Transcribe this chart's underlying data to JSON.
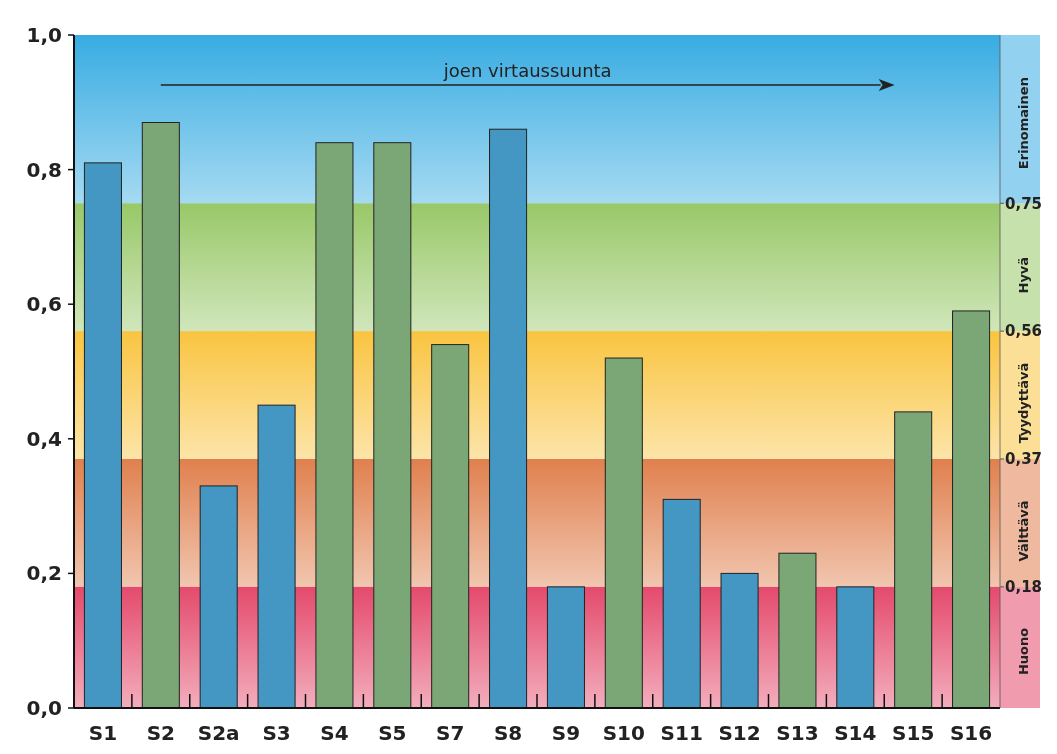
{
  "chart_data": {
    "type": "bar",
    "categories": [
      "S1",
      "S2",
      "S2a",
      "S3",
      "S4",
      "S5",
      "S7",
      "S8",
      "S9",
      "S10",
      "S11",
      "S12",
      "S13",
      "S14",
      "S15",
      "S16"
    ],
    "values": [
      0.81,
      0.87,
      0.33,
      0.45,
      0.84,
      0.84,
      0.54,
      0.86,
      0.18,
      0.52,
      0.31,
      0.2,
      0.23,
      0.18,
      0.44,
      0.59
    ],
    "colors": [
      "#4397c2",
      "#7ba776",
      "#4397c2",
      "#4397c2",
      "#7ba776",
      "#7ba776",
      "#7ba776",
      "#4397c2",
      "#4397c2",
      "#7ba776",
      "#4397c2",
      "#4397c2",
      "#7ba776",
      "#4397c2",
      "#7ba776",
      "#7ba776"
    ],
    "ylim": [
      0,
      1
    ],
    "yticks": [
      {
        "value": 0,
        "label": "0,0"
      },
      {
        "value": 0.2,
        "label": "0,2"
      },
      {
        "value": 0.4,
        "label": "0,4"
      },
      {
        "value": 0.6,
        "label": "0,6"
      },
      {
        "value": 0.8,
        "label": "0,8"
      },
      {
        "value": 1,
        "label": "1,0"
      }
    ],
    "y2lim": [
      0,
      1
    ],
    "y2ticks": [
      {
        "value": 0.18,
        "label": "0,18"
      },
      {
        "value": 0.37,
        "label": "0,37"
      },
      {
        "value": 0.56,
        "label": "0,56"
      },
      {
        "value": 0.75,
        "label": "0,75"
      }
    ],
    "bands": [
      {
        "axis": "y",
        "from": 0,
        "to": 0.18,
        "label": "Huono",
        "color": "#e44a6c"
      },
      {
        "axis": "y",
        "from": 0.18,
        "to": 0.37,
        "label": "Välttävä",
        "color": "#e0804e"
      },
      {
        "axis": "y",
        "from": 0.37,
        "to": 0.56,
        "label": "Tyydyttävä",
        "color": "#f9c440"
      },
      {
        "axis": "y",
        "from": 0.56,
        "to": 0.75,
        "label": "Hyvä",
        "color": "#98c868"
      },
      {
        "axis": "y",
        "from": 0.75,
        "to": 1,
        "label": "Erinomainen",
        "color": "#38ace2"
      }
    ],
    "annotations": [
      "joen virtaussuunta"
    ],
    "grid": false
  }
}
